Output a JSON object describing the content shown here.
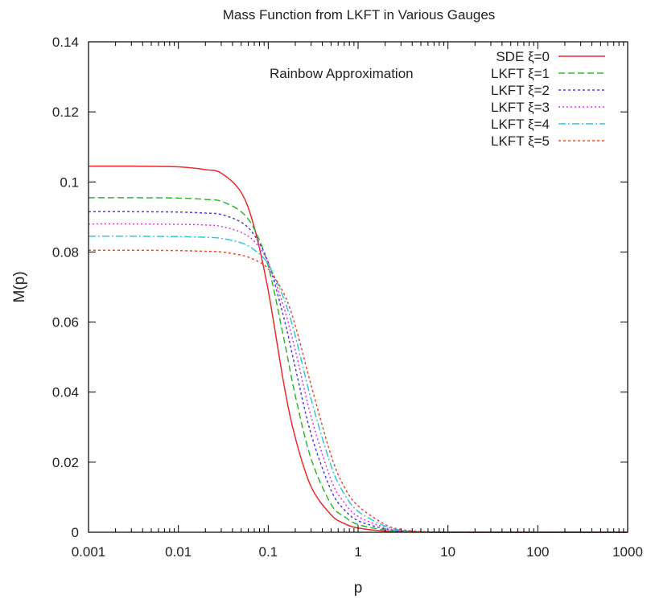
{
  "chart_data": {
    "type": "line",
    "title": "Mass Function from LKFT in Various Gauges",
    "xlabel": "p",
    "ylabel": "M(p)",
    "xscale": "log",
    "xlim": [
      0.001,
      1000
    ],
    "ylim": [
      0,
      0.14
    ],
    "xticks": [
      "0.001",
      "0.01",
      "0.1",
      "1",
      "10",
      "100",
      "1000"
    ],
    "yticks": [
      "0",
      "0.02",
      "0.04",
      "0.06",
      "0.08",
      "0.1",
      "0.12",
      "0.14"
    ],
    "annotation": "Rainbow Approximation",
    "legend_position": "top-right",
    "grid": false,
    "x": [
      0.001,
      0.003,
      0.01,
      0.02,
      0.03,
      0.05,
      0.07,
      0.1,
      0.15,
      0.2,
      0.3,
      0.5,
      0.7,
      1,
      2,
      3,
      5,
      10,
      100,
      1000
    ],
    "series": [
      {
        "name": "SDE  ξ=0",
        "color": "#e8292d",
        "dash": "solid",
        "values": [
          0.1045,
          0.1045,
          0.1043,
          0.1035,
          0.1025,
          0.097,
          0.087,
          0.069,
          0.042,
          0.027,
          0.013,
          0.005,
          0.0025,
          0.0012,
          0.0003,
          0.0001,
          3e-05,
          0.0,
          0.0,
          0.0
        ]
      },
      {
        "name": "LKFT ξ=1",
        "color": "#2fb82f",
        "dash": "8,4",
        "values": [
          0.0955,
          0.0955,
          0.0954,
          0.095,
          0.0945,
          0.0915,
          0.0865,
          0.076,
          0.055,
          0.039,
          0.021,
          0.008,
          0.0045,
          0.0022,
          0.0006,
          0.0002,
          5e-05,
          0.0,
          0.0,
          0.0
        ]
      },
      {
        "name": "LKFT ξ=2",
        "color": "#4a3fd8",
        "dash": "3,3",
        "values": [
          0.0915,
          0.0915,
          0.0914,
          0.0911,
          0.0907,
          0.0885,
          0.0848,
          0.077,
          0.061,
          0.047,
          0.028,
          0.012,
          0.0065,
          0.0033,
          0.0009,
          0.0003,
          0.0001,
          0.0,
          0.0,
          0.0
        ]
      },
      {
        "name": "LKFT ξ=3",
        "color": "#e030e0",
        "dash": "2,3",
        "values": [
          0.088,
          0.088,
          0.0879,
          0.0877,
          0.0873,
          0.0856,
          0.083,
          0.077,
          0.064,
          0.052,
          0.033,
          0.015,
          0.0085,
          0.0045,
          0.0013,
          0.0004,
          0.0001,
          0.0,
          0.0,
          0.0
        ]
      },
      {
        "name": "LKFT ξ=4",
        "color": "#2fc8d8",
        "dash": "9,3,2,3",
        "values": [
          0.0845,
          0.0845,
          0.0844,
          0.0842,
          0.0839,
          0.0826,
          0.0806,
          0.0765,
          0.0665,
          0.056,
          0.038,
          0.019,
          0.011,
          0.006,
          0.0017,
          0.0006,
          0.00015,
          0.0,
          0.0,
          0.0
        ]
      },
      {
        "name": "LKFT ξ=5",
        "color": "#e84a2a",
        "dash": "3,3",
        "values": [
          0.0805,
          0.0805,
          0.0804,
          0.0802,
          0.08,
          0.0791,
          0.0778,
          0.0752,
          0.068,
          0.059,
          0.042,
          0.022,
          0.013,
          0.0075,
          0.0022,
          0.0008,
          0.0002,
          0.0,
          0.0,
          0.0
        ]
      }
    ],
    "reference_line": {
      "y": 0,
      "color": "#000000",
      "dash": "2,2"
    }
  }
}
